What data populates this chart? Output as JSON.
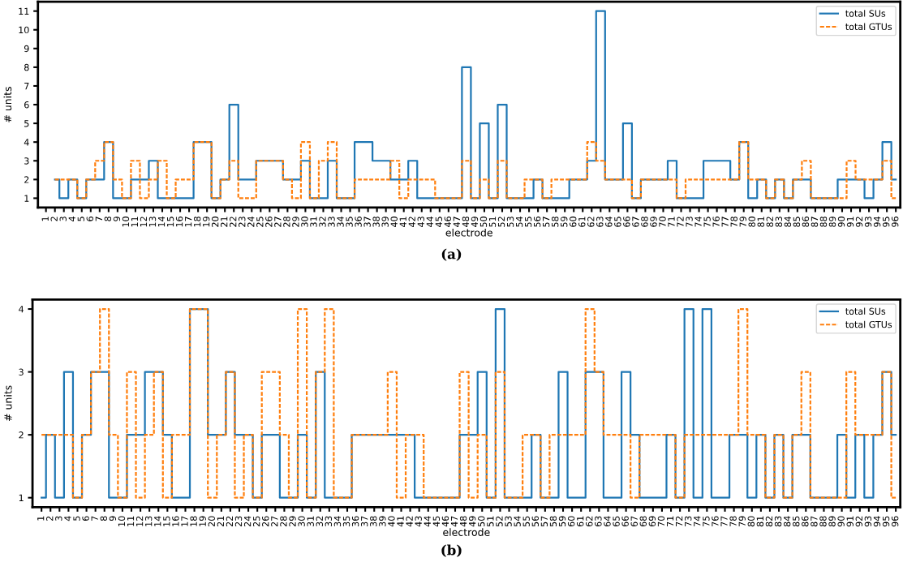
{
  "chart_data": [
    {
      "type": "step",
      "xlim": [
        0.1,
        96.5
      ],
      "xticks": [
        1,
        2,
        3,
        4,
        5,
        6,
        7,
        8,
        9,
        10,
        11,
        12,
        13,
        14,
        15,
        16,
        17,
        18,
        19,
        20,
        21,
        22,
        23,
        24,
        25,
        26,
        27,
        28,
        29,
        30,
        31,
        32,
        33,
        34,
        35,
        36,
        37,
        38,
        39,
        40,
        41,
        42,
        43,
        44,
        45,
        46,
        47,
        48,
        49,
        50,
        51,
        52,
        53,
        54,
        55,
        56,
        57,
        58,
        59,
        60,
        61,
        62,
        63,
        64,
        65,
        66,
        67,
        68,
        69,
        70,
        71,
        72,
        73,
        74,
        75,
        76,
        77,
        78,
        79,
        80,
        81,
        82,
        83,
        84,
        85,
        86,
        87,
        88,
        89,
        90,
        91,
        92,
        93,
        94,
        95,
        96
      ],
      "xlabel": "electrode",
      "ylabel": "# units",
      "ylim": [
        0.5,
        11.5
      ],
      "yticks": [
        1,
        2,
        3,
        4,
        5,
        6,
        7,
        8,
        9,
        10,
        11
      ],
      "legend": "top right",
      "annotations": [
        "(a)"
      ],
      "series": [
        {
          "name": "total SUs",
          "color": "#1f77b4",
          "line_style": "solid",
          "x": [
            2,
            3,
            4,
            5,
            6,
            7,
            8,
            9,
            10,
            11,
            12,
            13,
            14,
            15,
            16,
            17,
            18,
            19,
            20,
            21,
            22,
            23,
            24,
            25,
            26,
            27,
            28,
            29,
            30,
            31,
            32,
            33,
            34,
            35,
            36,
            37,
            38,
            39,
            40,
            41,
            42,
            43,
            44,
            45,
            46,
            47,
            48,
            49,
            50,
            51,
            52,
            53,
            54,
            55,
            56,
            57,
            58,
            59,
            60,
            61,
            62,
            63,
            64,
            65,
            66,
            67,
            68,
            69,
            70,
            71,
            72,
            73,
            74,
            75,
            76,
            77,
            78,
            79,
            80,
            81,
            82,
            83,
            84,
            85,
            86,
            87,
            88,
            89,
            90,
            91,
            92,
            93,
            94,
            95,
            96
          ],
          "values": [
            2,
            1,
            2,
            1,
            2,
            2,
            4,
            1,
            1,
            2,
            2,
            3,
            1,
            1,
            1,
            1,
            4,
            4,
            1,
            2,
            6,
            2,
            2,
            3,
            3,
            3,
            2,
            2,
            3,
            1,
            1,
            3,
            1,
            1,
            4,
            4,
            3,
            3,
            2,
            2,
            3,
            1,
            1,
            1,
            1,
            1,
            8,
            1,
            5,
            1,
            6,
            1,
            1,
            1,
            2,
            1,
            1,
            1,
            2,
            2,
            3,
            11,
            2,
            2,
            5,
            1,
            2,
            2,
            2,
            3,
            1,
            1,
            1,
            3,
            3,
            3,
            2,
            4,
            1,
            2,
            1,
            2,
            1,
            2,
            2,
            1,
            1,
            1,
            2,
            2,
            2,
            1,
            2,
            4,
            2
          ]
        },
        {
          "name": "total GTUs",
          "color": "#ff7f0e",
          "line_style": "dashed",
          "x": [
            2,
            3,
            4,
            5,
            6,
            7,
            8,
            9,
            10,
            11,
            12,
            13,
            14,
            15,
            16,
            17,
            18,
            19,
            20,
            21,
            22,
            23,
            24,
            25,
            26,
            27,
            28,
            29,
            30,
            31,
            32,
            33,
            34,
            35,
            36,
            37,
            38,
            39,
            40,
            41,
            42,
            43,
            44,
            45,
            46,
            47,
            48,
            49,
            50,
            51,
            52,
            53,
            54,
            55,
            56,
            57,
            58,
            59,
            60,
            61,
            62,
            63,
            64,
            65,
            66,
            67,
            68,
            69,
            70,
            71,
            72,
            73,
            74,
            75,
            76,
            77,
            78,
            79,
            80,
            81,
            82,
            83,
            84,
            85,
            86,
            87,
            88,
            89,
            90,
            91,
            92,
            93,
            94,
            95,
            96
          ],
          "values": [
            2,
            2,
            2,
            1,
            2,
            3,
            4,
            2,
            1,
            3,
            1,
            2,
            3,
            1,
            2,
            2,
            4,
            4,
            1,
            2,
            3,
            1,
            1,
            3,
            3,
            3,
            2,
            1,
            4,
            1,
            3,
            4,
            1,
            1,
            2,
            2,
            2,
            2,
            3,
            1,
            2,
            2,
            2,
            1,
            1,
            1,
            3,
            1,
            2,
            1,
            3,
            1,
            1,
            2,
            2,
            1,
            2,
            2,
            2,
            2,
            4,
            3,
            2,
            2,
            2,
            1,
            2,
            2,
            2,
            2,
            1,
            2,
            2,
            2,
            2,
            2,
            2,
            4,
            2,
            2,
            1,
            2,
            1,
            2,
            3,
            1,
            1,
            1,
            1,
            3,
            2,
            2,
            2,
            3,
            1
          ]
        }
      ]
    },
    {
      "type": "step",
      "x": [
        1,
        2,
        3,
        4,
        5,
        6,
        7,
        8,
        9,
        10,
        11,
        12,
        13,
        14,
        15,
        16,
        17,
        18,
        19,
        20,
        21,
        22,
        23,
        24,
        25,
        26,
        27,
        28,
        29,
        30,
        31,
        32,
        33,
        34,
        35,
        36,
        37,
        38,
        39,
        40,
        41,
        42,
        43,
        44,
        45,
        46,
        47,
        48,
        49,
        50,
        51,
        52,
        53,
        54,
        55,
        56,
        57,
        58,
        59,
        60,
        61,
        62,
        63,
        64,
        65,
        66,
        67,
        68,
        69,
        70,
        71,
        72,
        73,
        74,
        75,
        76,
        77,
        78,
        79,
        80,
        81,
        82,
        83,
        84,
        85,
        86,
        87,
        88,
        89,
        90,
        91,
        92,
        93,
        94,
        95,
        96
      ],
      "xlim": [
        0.0,
        96.5
      ],
      "xticks": [
        1,
        2,
        3,
        4,
        5,
        6,
        7,
        8,
        9,
        10,
        11,
        12,
        13,
        14,
        15,
        16,
        17,
        18,
        19,
        20,
        21,
        22,
        23,
        24,
        25,
        26,
        27,
        28,
        29,
        30,
        31,
        32,
        33,
        34,
        35,
        36,
        37,
        38,
        39,
        40,
        41,
        42,
        43,
        44,
        45,
        46,
        47,
        48,
        49,
        50,
        51,
        52,
        53,
        54,
        55,
        56,
        57,
        58,
        59,
        60,
        61,
        62,
        63,
        64,
        65,
        66,
        67,
        68,
        69,
        70,
        71,
        72,
        73,
        74,
        75,
        76,
        77,
        78,
        79,
        80,
        81,
        82,
        83,
        84,
        85,
        86,
        87,
        88,
        89,
        90,
        91,
        92,
        93,
        94,
        95,
        96
      ],
      "xlabel": "electrode",
      "ylabel": "# units",
      "ylim": [
        0.85,
        4.15
      ],
      "yticks": [
        1,
        2,
        3,
        4
      ],
      "legend": "top right",
      "annotations": [
        "(b)"
      ],
      "series": [
        {
          "name": "total SUs",
          "color": "#1f77b4",
          "line_style": "solid",
          "values": [
            1,
            2,
            1,
            3,
            1,
            2,
            3,
            3,
            1,
            1,
            2,
            2,
            3,
            3,
            2,
            1,
            1,
            4,
            4,
            2,
            2,
            3,
            2,
            2,
            1,
            2,
            2,
            1,
            1,
            2,
            1,
            3,
            1,
            1,
            1,
            2,
            2,
            2,
            2,
            2,
            2,
            2,
            1,
            1,
            1,
            1,
            1,
            2,
            2,
            3,
            1,
            4,
            1,
            1,
            1,
            2,
            1,
            1,
            3,
            1,
            1,
            3,
            3,
            1,
            1,
            3,
            2,
            1,
            1,
            1,
            2,
            1,
            4,
            1,
            4,
            1,
            1,
            2,
            2,
            1,
            2,
            1,
            2,
            1,
            2,
            2,
            1,
            1,
            1,
            2,
            1,
            2,
            1,
            2,
            3,
            2
          ]
        },
        {
          "name": "total GTUs",
          "color": "#ff7f0e",
          "line_style": "dashed",
          "values": [
            2,
            2,
            2,
            2,
            1,
            2,
            3,
            4,
            2,
            1,
            3,
            1,
            2,
            3,
            1,
            2,
            2,
            4,
            4,
            1,
            2,
            3,
            1,
            2,
            1,
            3,
            3,
            2,
            1,
            4,
            1,
            3,
            4,
            1,
            1,
            2,
            2,
            2,
            2,
            3,
            1,
            2,
            2,
            1,
            1,
            1,
            1,
            3,
            1,
            2,
            1,
            3,
            1,
            1,
            2,
            2,
            1,
            2,
            2,
            2,
            2,
            4,
            3,
            2,
            2,
            2,
            1,
            2,
            2,
            2,
            2,
            1,
            2,
            2,
            2,
            2,
            2,
            2,
            4,
            2,
            2,
            1,
            2,
            1,
            2,
            3,
            1,
            1,
            1,
            1,
            3,
            2,
            2,
            2,
            3,
            1
          ]
        }
      ]
    }
  ]
}
